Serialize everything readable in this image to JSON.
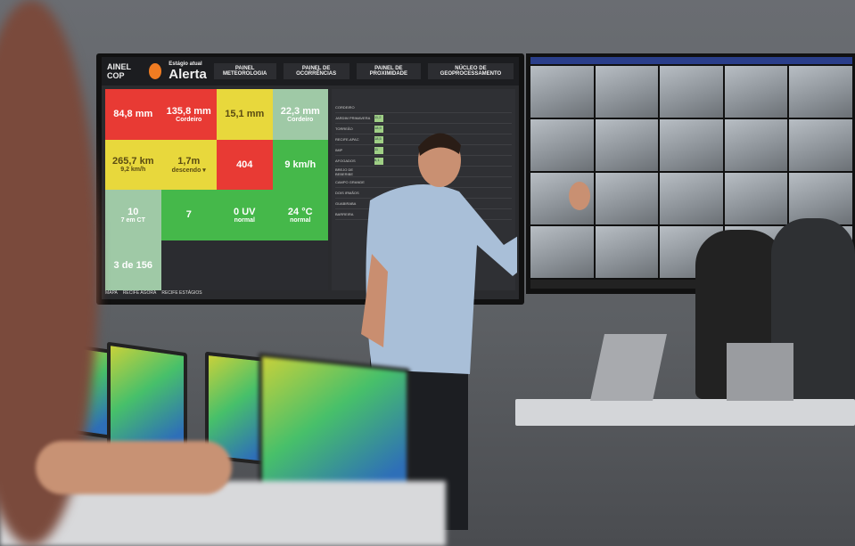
{
  "dashboard": {
    "header": {
      "brand": "AINEL COP",
      "stage_label": "Estágio atual",
      "stage_value": "Alerta",
      "nav": [
        "PAINEL METEOROLOGIA",
        "PAINEL DE OCORRÊNCIAS",
        "PAINEL DE PROXIMIDADE"
      ],
      "partner": "NÚCLEO DE GEOPROCESSAMENTO"
    },
    "tiles": [
      {
        "value": "84,8 mm",
        "sub": "",
        "color": "red"
      },
      {
        "value": "135,8 mm",
        "sub": "Cordeiro",
        "color": "red"
      },
      {
        "value": "15,1 mm",
        "sub": "",
        "color": "yellow"
      },
      {
        "value": "22,3 mm",
        "sub": "Cordeiro",
        "color": "lightgreen"
      },
      {
        "value": "265,7 km",
        "sub": "9,2 km/h",
        "color": "yellow"
      },
      {
        "value": "1,7m",
        "sub": "descendo ▾",
        "color": "yellow"
      },
      {
        "value": "404",
        "sub": "",
        "color": "red"
      },
      {
        "value": "9 km/h",
        "sub": "",
        "color": "green"
      },
      {
        "value": "10",
        "sub": "7 em CT",
        "color": "lightgreen"
      },
      {
        "value": "7",
        "sub": "",
        "color": "green"
      },
      {
        "value": "0 UV",
        "sub": "normal",
        "color": "green"
      },
      {
        "value": "24 °C",
        "sub": "normal",
        "color": "green"
      },
      {
        "value": "3 de 156",
        "sub": "",
        "color": "lightgreen"
      }
    ],
    "table_rows": [
      "CORDEIRO",
      "JARDIM PRIMAVERA",
      "TORREÃO",
      "RECIFE-APAC",
      "IMIP",
      "AFOGADOS",
      "BREJO DE BEBERIBE",
      "CAMPO GRANDE",
      "DOIS IRMÃOS",
      "GUABIRABA",
      "BARREIRA"
    ],
    "table_highlights": [
      "11,2",
      "18,9",
      "18,5",
      "11",
      "6,1"
    ],
    "footer_tabs": [
      "MAPA",
      "RECIFE AGORA",
      "RECIFE ESTÁGIOS"
    ]
  },
  "colors": {
    "red": "#e83a34",
    "yellow": "#e8d83c",
    "green": "#45b84a",
    "lightgreen": "#9fc9a6",
    "alert_orange": "#f07c22"
  }
}
